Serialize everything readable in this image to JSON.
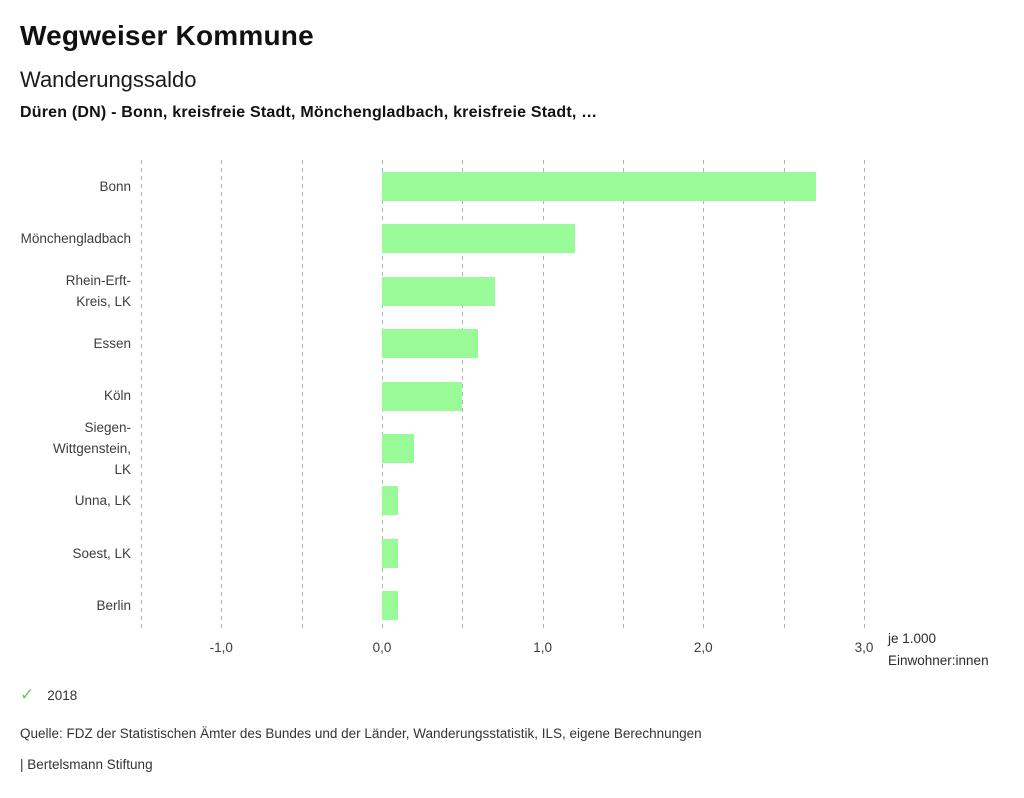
{
  "header": {
    "app_title": "Wegweiser Kommune",
    "chart_title": "Wanderungssaldo",
    "chart_subtitle": "Düren (DN) - Bonn, kreisfreie Stadt, Mönchengladbach, kreisfreie Stadt, …"
  },
  "chart_data": {
    "type": "bar",
    "orientation": "horizontal",
    "title": "Wanderungssaldo",
    "categories": [
      "Bonn",
      "Mönchengladbach",
      "Rhein-Erft-Kreis, LK",
      "Essen",
      "Köln",
      "Siegen-Wittgenstein, LK",
      "Unna, LK",
      "Soest, LK",
      "Berlin"
    ],
    "category_label_lines": [
      [
        "Bonn"
      ],
      [
        "Mönchengladbach"
      ],
      [
        "Rhein-Erft-",
        "Kreis, LK"
      ],
      [
        "Essen"
      ],
      [
        "Köln"
      ],
      [
        "Siegen-",
        "Wittgenstein,",
        "LK"
      ],
      [
        "Unna, LK"
      ],
      [
        "Soest, LK"
      ],
      [
        "Berlin"
      ]
    ],
    "series": [
      {
        "name": "2018",
        "values": [
          2.7,
          1.2,
          0.7,
          0.6,
          0.5,
          0.2,
          0.1,
          0.1,
          0.1
        ]
      }
    ],
    "xlabel": "je 1.000 Einwohner:innen",
    "xlabel_lines": [
      "je 1.000",
      "Einwohner:innen"
    ],
    "xlim": [
      -1.5,
      3.0
    ],
    "grid": true,
    "grid_step": 0.5,
    "ticks": [
      {
        "value": -1.0,
        "label": "-1,0"
      },
      {
        "value": 0.0,
        "label": "0,0"
      },
      {
        "value": 1.0,
        "label": "1,0"
      },
      {
        "value": 2.0,
        "label": "2,0"
      },
      {
        "value": 3.0,
        "label": "3,0"
      }
    ],
    "legend_position": "bottom-left",
    "bar_color": "#98FB98"
  },
  "legend": {
    "check_icon": "✓",
    "items": [
      {
        "label": "2018",
        "color": "#5FD35F",
        "active": true
      }
    ]
  },
  "footer": {
    "source": "Quelle: FDZ der Statistischen Ämter des Bundes und der Länder, Wanderungsstatistik, ILS, eigene Berechnungen",
    "branding": "| Bertelsmann Stiftung"
  },
  "colors": {
    "background": "#FFFFFF",
    "bar": "#98FB98",
    "gridline": "#B4B4B4",
    "text_primary": "#111111",
    "text_secondary": "#3D3D3D",
    "legend_check": "#5FD35F"
  }
}
